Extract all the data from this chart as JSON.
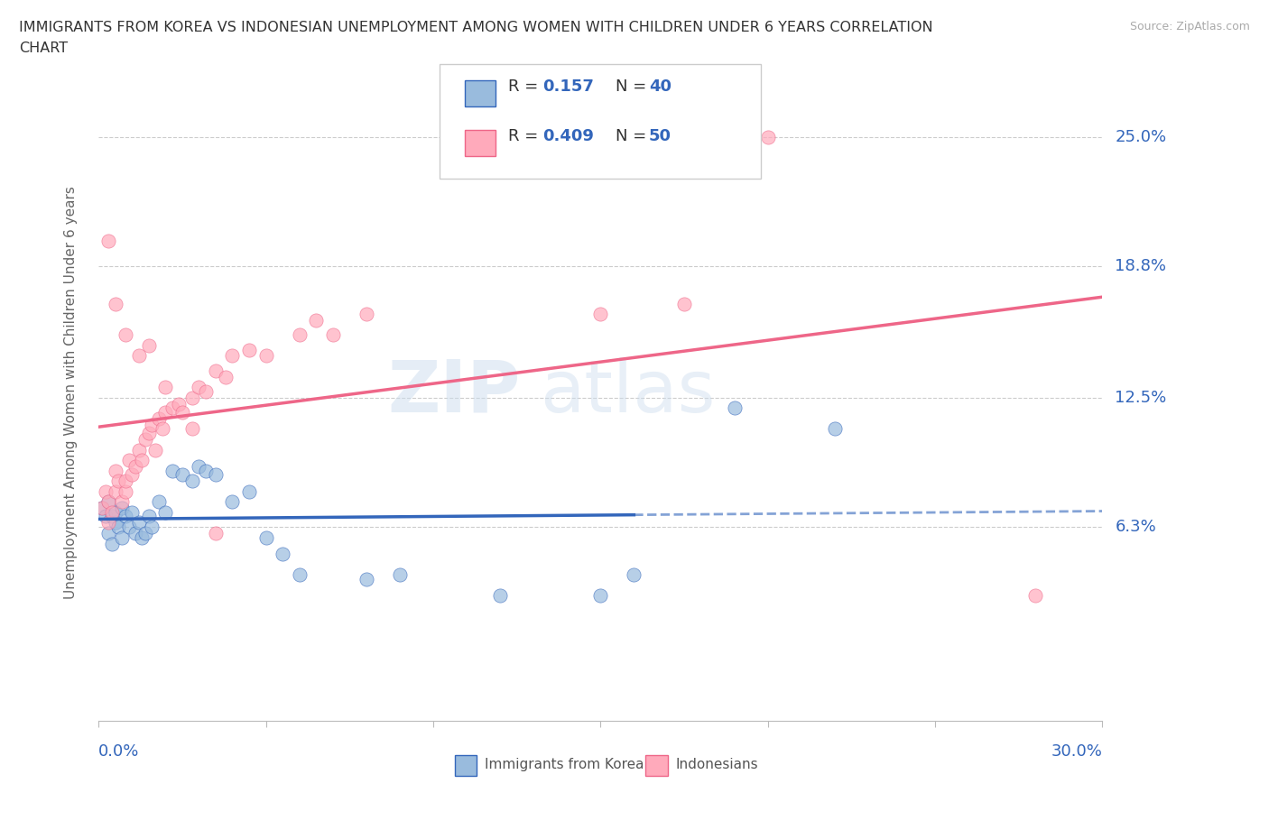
{
  "title_line1": "IMMIGRANTS FROM KOREA VS INDONESIAN UNEMPLOYMENT AMONG WOMEN WITH CHILDREN UNDER 6 YEARS CORRELATION",
  "title_line2": "CHART",
  "source": "Source: ZipAtlas.com",
  "ylabel": "Unemployment Among Women with Children Under 6 years",
  "xlim": [
    0.0,
    0.3
  ],
  "ylim": [
    -0.03,
    0.285
  ],
  "ytick_labels": [
    "6.3%",
    "12.5%",
    "18.8%",
    "25.0%"
  ],
  "ytick_values": [
    0.063,
    0.125,
    0.188,
    0.25
  ],
  "korea_R": 0.157,
  "korea_N": 40,
  "indonesia_R": 0.409,
  "indonesia_N": 50,
  "korea_color": "#99BBDD",
  "indonesia_color": "#FFAABB",
  "korea_line_color": "#3366BB",
  "indonesia_line_color": "#EE6688",
  "korea_x": [
    0.001,
    0.002,
    0.003,
    0.003,
    0.004,
    0.004,
    0.005,
    0.005,
    0.006,
    0.007,
    0.007,
    0.008,
    0.009,
    0.01,
    0.011,
    0.012,
    0.013,
    0.014,
    0.015,
    0.016,
    0.018,
    0.02,
    0.022,
    0.025,
    0.028,
    0.03,
    0.032,
    0.035,
    0.04,
    0.045,
    0.05,
    0.055,
    0.06,
    0.08,
    0.09,
    0.12,
    0.15,
    0.16,
    0.19,
    0.22
  ],
  "korea_y": [
    0.072,
    0.068,
    0.075,
    0.06,
    0.068,
    0.055,
    0.065,
    0.07,
    0.063,
    0.058,
    0.072,
    0.068,
    0.063,
    0.07,
    0.06,
    0.065,
    0.058,
    0.06,
    0.068,
    0.063,
    0.075,
    0.07,
    0.09,
    0.088,
    0.085,
    0.092,
    0.09,
    0.088,
    0.075,
    0.08,
    0.058,
    0.05,
    0.04,
    0.038,
    0.04,
    0.03,
    0.03,
    0.04,
    0.12,
    0.11
  ],
  "indonesia_x": [
    0.001,
    0.002,
    0.003,
    0.003,
    0.004,
    0.005,
    0.005,
    0.006,
    0.007,
    0.008,
    0.008,
    0.009,
    0.01,
    0.011,
    0.012,
    0.013,
    0.014,
    0.015,
    0.016,
    0.017,
    0.018,
    0.019,
    0.02,
    0.022,
    0.024,
    0.025,
    0.028,
    0.03,
    0.032,
    0.035,
    0.038,
    0.04,
    0.045,
    0.05,
    0.06,
    0.065,
    0.07,
    0.08,
    0.15,
    0.175,
    0.003,
    0.005,
    0.008,
    0.012,
    0.015,
    0.02,
    0.028,
    0.035,
    0.2,
    0.28
  ],
  "indonesia_y": [
    0.072,
    0.08,
    0.075,
    0.065,
    0.07,
    0.08,
    0.09,
    0.085,
    0.075,
    0.08,
    0.085,
    0.095,
    0.088,
    0.092,
    0.1,
    0.095,
    0.105,
    0.108,
    0.112,
    0.1,
    0.115,
    0.11,
    0.118,
    0.12,
    0.122,
    0.118,
    0.125,
    0.13,
    0.128,
    0.138,
    0.135,
    0.145,
    0.148,
    0.145,
    0.155,
    0.162,
    0.155,
    0.165,
    0.165,
    0.17,
    0.2,
    0.17,
    0.155,
    0.145,
    0.15,
    0.13,
    0.11,
    0.06,
    0.25,
    0.03
  ]
}
